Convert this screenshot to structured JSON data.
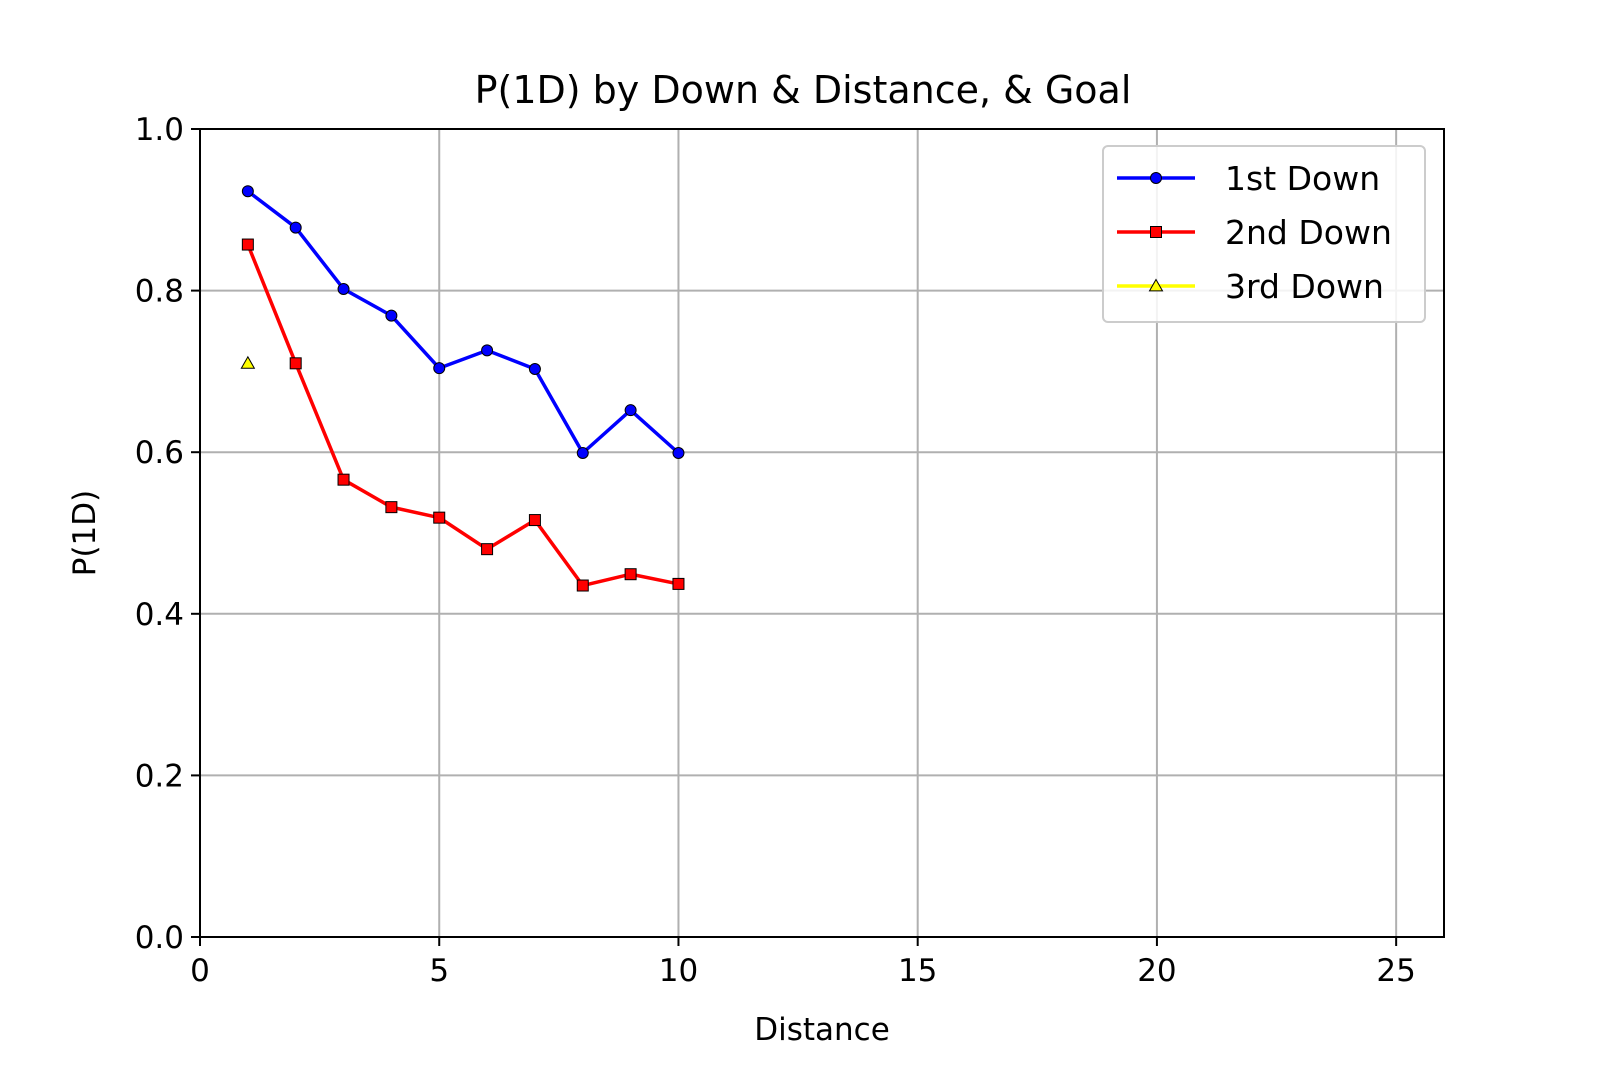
{
  "chart_data": {
    "type": "line",
    "title": "P(1D) by Down & Distance, & Goal",
    "xlabel": "Distance",
    "ylabel": "P(1D)",
    "xlim": [
      0,
      26
    ],
    "ylim": [
      0.0,
      1.0
    ],
    "x_ticks": [
      0,
      5,
      10,
      15,
      20,
      25
    ],
    "x_tick_labels": [
      "0",
      "5",
      "10",
      "15",
      "20",
      "25"
    ],
    "y_ticks": [
      0.0,
      0.2,
      0.4,
      0.6,
      0.8,
      1.0
    ],
    "y_tick_labels": [
      "0.0",
      "0.2",
      "0.4",
      "0.6",
      "0.8",
      "1.0"
    ],
    "grid": true,
    "legend_position": "top-right",
    "series": [
      {
        "name": "1st Down",
        "color": "#0000ff",
        "marker": "circle",
        "x": [
          1,
          2,
          3,
          4,
          5,
          6,
          7,
          8,
          9,
          10
        ],
        "values": [
          0.923,
          0.878,
          0.802,
          0.769,
          0.704,
          0.726,
          0.703,
          0.599,
          0.652,
          0.599
        ]
      },
      {
        "name": "2nd Down",
        "color": "#ff0000",
        "marker": "square",
        "x": [
          1,
          2,
          3,
          4,
          5,
          6,
          7,
          8,
          9,
          10
        ],
        "values": [
          0.857,
          0.71,
          0.566,
          0.532,
          0.519,
          0.48,
          0.516,
          0.435,
          0.449,
          0.437
        ]
      },
      {
        "name": "3rd Down",
        "color": "#ffff00",
        "marker": "triangle",
        "x": [
          1
        ],
        "values": [
          0.71
        ]
      }
    ]
  }
}
